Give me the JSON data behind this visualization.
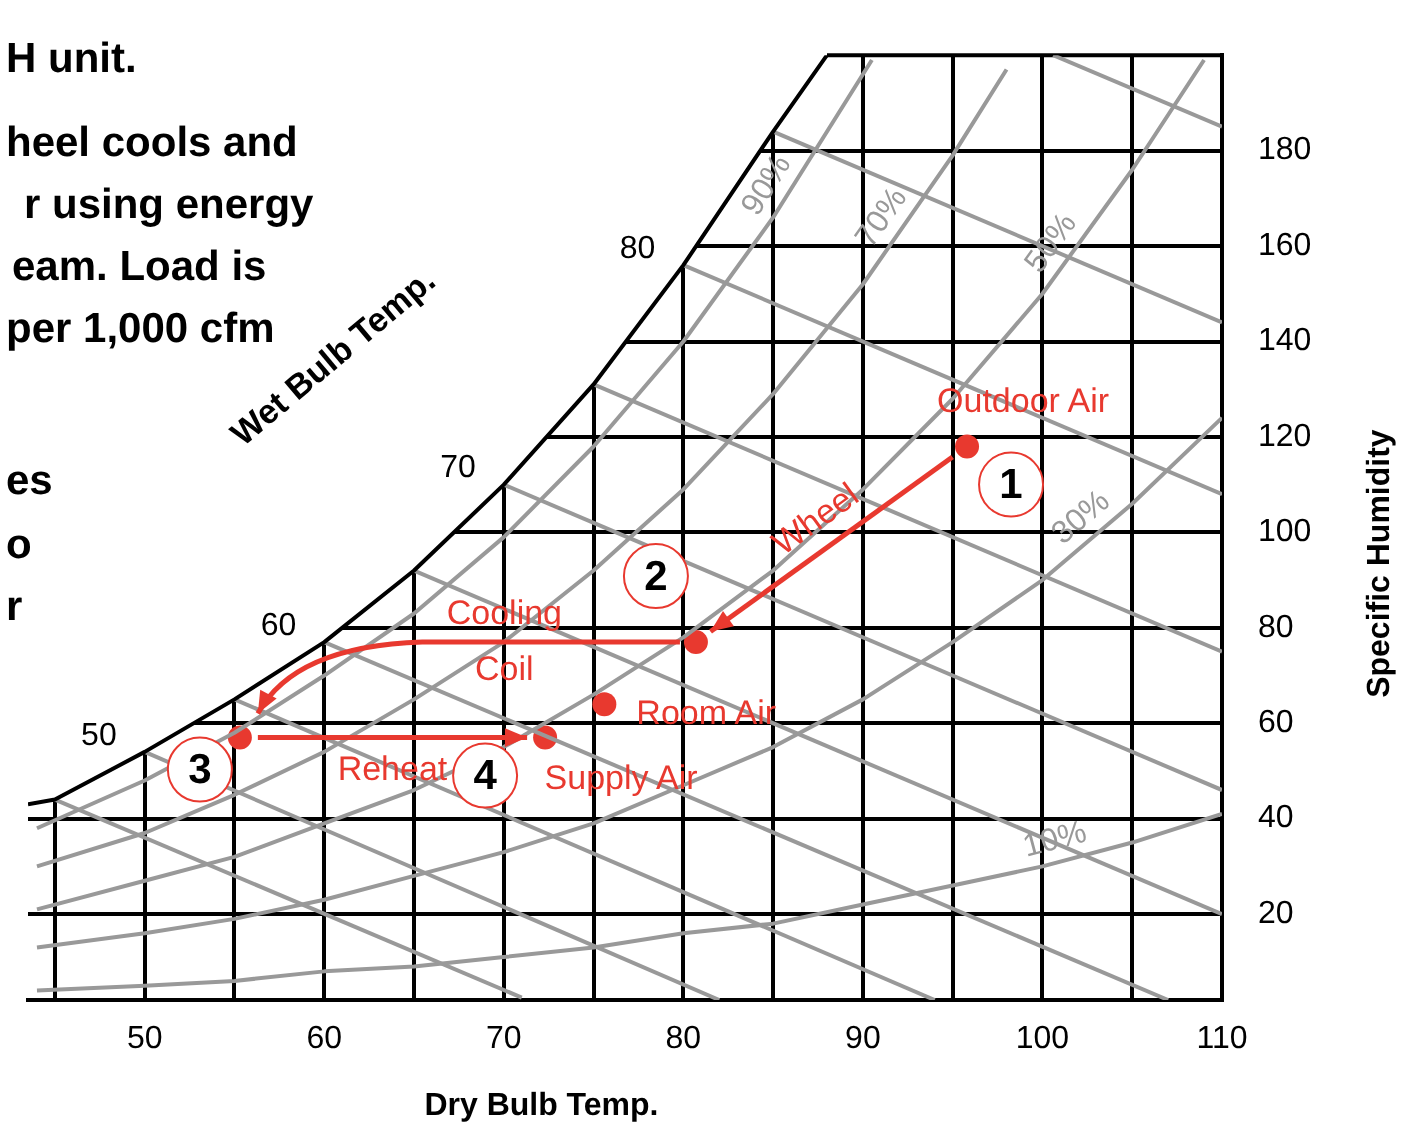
{
  "chart_data": {
    "type": "line",
    "xlabel": "Dry Bulb Temp.",
    "ylabel": "Specific Humidity",
    "xlim": [
      43.5,
      110
    ],
    "ylim": [
      2,
      200
    ],
    "xticks": [
      {
        "value": 45,
        "label": null
      },
      50,
      {
        "value": 55,
        "label": null
      },
      60,
      {
        "value": 65,
        "label": null
      },
      70,
      {
        "value": 75,
        "label": null
      },
      80,
      {
        "value": 85,
        "label": null
      },
      90,
      {
        "value": 95,
        "label": null
      },
      100,
      {
        "value": 105,
        "label": null
      },
      110
    ],
    "yticks": [
      20,
      40,
      60,
      80,
      100,
      120,
      140,
      160,
      180
    ],
    "grid": true,
    "series": [
      {
        "color": "#000000",
        "x": [
          43.5,
          45,
          50,
          55,
          60,
          65,
          70,
          75,
          80,
          85,
          88
        ],
        "values": [
          43,
          44,
          54,
          65,
          77,
          92,
          110,
          131,
          156,
          184,
          200
        ]
      },
      {
        "name": "90%",
        "color": "#999999",
        "x": [
          44,
          50,
          55,
          60,
          65,
          70,
          75,
          80,
          85,
          90.5
        ],
        "values": [
          38,
          48,
          58,
          70,
          83,
          99,
          118,
          140,
          166,
          199
        ]
      },
      {
        "name": "70%",
        "color": "#999999",
        "x": [
          44,
          50,
          55,
          60,
          65,
          70,
          75,
          80,
          85,
          90,
          95,
          98
        ],
        "values": [
          30,
          37,
          45,
          54,
          65,
          77,
          92,
          109,
          129,
          152,
          179,
          197
        ]
      },
      {
        "name": "50%",
        "color": "#999999",
        "x": [
          44,
          50,
          55,
          60,
          65,
          70,
          75,
          80,
          85,
          90,
          95,
          100,
          105,
          109
        ],
        "values": [
          21,
          27,
          32,
          39,
          46,
          55,
          66,
          78,
          92,
          109,
          128,
          150,
          176,
          199
        ]
      },
      {
        "name": "30%",
        "color": "#999999",
        "x": [
          44,
          50,
          55,
          60,
          65,
          70,
          75,
          80,
          85,
          90,
          95,
          100,
          105,
          110
        ],
        "values": [
          13,
          16,
          19,
          23,
          28,
          33,
          39,
          47,
          55,
          65,
          77,
          90,
          106,
          124
        ]
      },
      {
        "name": "10%",
        "color": "#999999",
        "x": [
          44,
          50,
          55,
          60,
          65,
          70,
          75,
          80,
          85,
          90,
          95,
          100,
          105,
          110
        ],
        "values": [
          4,
          5,
          6,
          8,
          9,
          11,
          13,
          16,
          18,
          22,
          26,
          30,
          35,
          41
        ]
      },
      {
        "color": "#999999",
        "x": [
          45,
          71
        ],
        "values": [
          44,
          2.5
        ]
      },
      {
        "name": "50",
        "color": "#999999",
        "x": [
          50,
          82
        ],
        "values": [
          54,
          2
        ]
      },
      {
        "color": "#999999",
        "x": [
          55,
          94
        ],
        "values": [
          65,
          2
        ]
      },
      {
        "name": "60",
        "color": "#999999",
        "x": [
          60,
          107
        ],
        "values": [
          77,
          2
        ]
      },
      {
        "color": "#999999",
        "x": [
          65,
          110
        ],
        "values": [
          92,
          20
        ]
      },
      {
        "name": "70",
        "color": "#999999",
        "x": [
          70,
          110
        ],
        "values": [
          110,
          46
        ]
      },
      {
        "color": "#999999",
        "x": [
          75,
          110
        ],
        "values": [
          131,
          75
        ]
      },
      {
        "name": "80",
        "color": "#999999",
        "x": [
          80,
          110
        ],
        "values": [
          156,
          108
        ]
      },
      {
        "color": "#999999",
        "x": [
          85,
          110
        ],
        "values": [
          184,
          144
        ]
      },
      {
        "color": "#999999",
        "x": [
          100.6,
          110
        ],
        "values": [
          200,
          185
        ]
      },
      {
        "type": "scatter",
        "color": "#e8392f",
        "x": [
          95.8,
          80.7,
          55.3,
          72.3,
          75.6
        ],
        "values": [
          118,
          77,
          57,
          57,
          64
        ]
      }
    ],
    "annotations": [
      "H unit.",
      "heel cools and",
      "r using energy",
      "eam. Load is",
      "per 1,000 cfm",
      "es",
      "o",
      "r",
      "Wet Bulb Temp.",
      "Wheel",
      "Cooling Coil",
      "Reheat",
      {
        "text": "1",
        "x": 95.8,
        "y": 118
      },
      {
        "text": "2",
        "x": 80.7,
        "y": 77
      },
      {
        "text": "3",
        "x": 55.3,
        "y": 57
      },
      {
        "text": "4",
        "x": 72.3,
        "y": 57
      },
      {
        "text": "Outdoor Air",
        "x": 95.8,
        "y": 118
      },
      {
        "text": "Room Air",
        "x": 75.6,
        "y": 64
      },
      {
        "text": "Supply Air",
        "x": 72.3,
        "y": 57
      }
    ]
  }
}
